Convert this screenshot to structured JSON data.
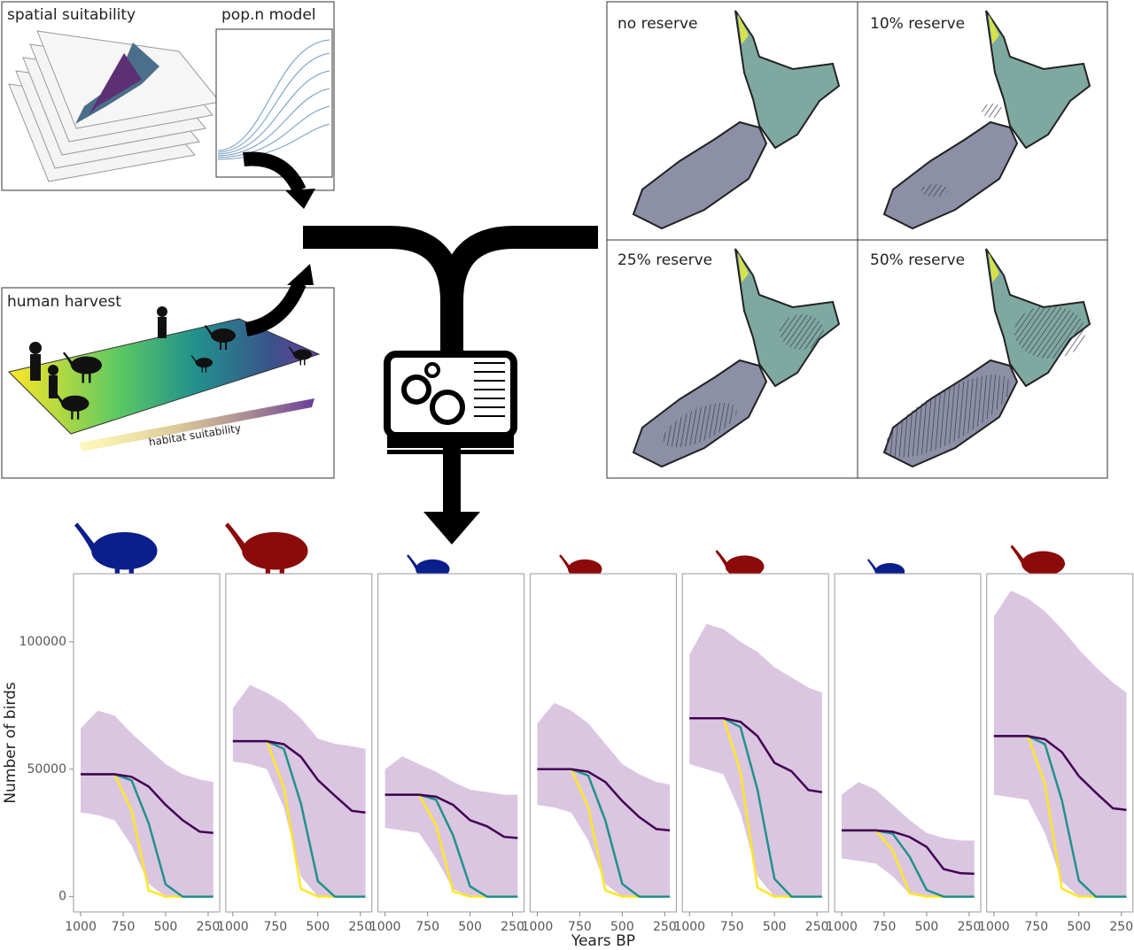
{
  "diagram": {
    "spatial": "spatial suitability",
    "popn": "pop.n model",
    "harvest": "human harvest",
    "gradient": "habitat suitability",
    "maps": [
      "no reserve",
      "10% reserve",
      "25% reserve",
      "50% reserve"
    ]
  },
  "chart_data": [
    {
      "type": "line",
      "ylabel": "Number of birds",
      "x": [
        1000,
        900,
        800,
        700,
        600,
        500,
        400,
        300,
        220
      ],
      "xlim": [
        1042,
        182
      ],
      "ylim": [
        -6000,
        126700
      ],
      "xticks": [
        1000,
        750,
        500,
        250
      ],
      "yticks": [
        0,
        50000,
        100000
      ],
      "band": {
        "color": "#cdb3d6",
        "upper": [
          66000,
          73000,
          71000,
          64000,
          58000,
          52000,
          48000,
          46000,
          45000
        ],
        "lower": [
          33000,
          32000,
          30000,
          20000,
          5000,
          0,
          0,
          0,
          0
        ]
      },
      "series": [
        {
          "color": "#fde725",
          "values": [
            48000,
            48000,
            48000,
            33600,
            2400,
            0,
            0,
            0,
            0
          ]
        },
        {
          "color": "#21918c",
          "values": [
            48000,
            48000,
            48000,
            45600,
            28800,
            4800,
            0,
            0,
            0
          ]
        },
        {
          "color": "#440154",
          "values": [
            48000,
            48000,
            48000,
            47000,
            43200,
            36000,
            30000,
            25500,
            25000
          ]
        }
      ]
    },
    {
      "type": "line",
      "x": [
        1000,
        900,
        800,
        700,
        600,
        500,
        400,
        300,
        220
      ],
      "xlim": [
        1042,
        182
      ],
      "ylim": [
        -6000,
        126700
      ],
      "xticks": [
        1000,
        750,
        500,
        250
      ],
      "band": {
        "color": "#cdb3d6",
        "upper": [
          74000,
          83000,
          80000,
          76000,
          70000,
          62000,
          60000,
          59000,
          58000
        ],
        "lower": [
          53000,
          52000,
          50000,
          35000,
          8000,
          0,
          0,
          0,
          0
        ]
      },
      "series": [
        {
          "color": "#fde725",
          "values": [
            61000,
            61000,
            61000,
            42700,
            3050,
            0,
            0,
            0,
            0
          ]
        },
        {
          "color": "#21918c",
          "values": [
            61000,
            61000,
            61000,
            57950,
            36600,
            6100,
            0,
            0,
            0
          ]
        },
        {
          "color": "#440154",
          "values": [
            61000,
            61000,
            61000,
            59800,
            54900,
            45750,
            39600,
            33660,
            33000
          ]
        }
      ]
    },
    {
      "type": "line",
      "x": [
        1000,
        900,
        800,
        700,
        600,
        500,
        400,
        300,
        220
      ],
      "xlim": [
        1042,
        182
      ],
      "ylim": [
        -6000,
        126700
      ],
      "xticks": [
        1000,
        750,
        500,
        250
      ],
      "band": {
        "color": "#cdb3d6",
        "upper": [
          50000,
          55000,
          52000,
          49000,
          45000,
          42000,
          41000,
          40000,
          40000
        ],
        "lower": [
          27000,
          26000,
          25000,
          15000,
          3000,
          0,
          0,
          0,
          0
        ]
      },
      "series": [
        {
          "color": "#fde725",
          "values": [
            40000,
            40000,
            40000,
            28000,
            2000,
            0,
            0,
            0,
            0
          ]
        },
        {
          "color": "#21918c",
          "values": [
            40000,
            40000,
            40000,
            38000,
            24000,
            4000,
            0,
            0,
            0
          ]
        },
        {
          "color": "#440154",
          "values": [
            40000,
            40000,
            40000,
            39200,
            36000,
            30000,
            27600,
            23460,
            23000
          ]
        }
      ]
    },
    {
      "type": "line",
      "xlabel": "Years BP",
      "x": [
        1000,
        900,
        800,
        700,
        600,
        500,
        400,
        300,
        220
      ],
      "xlim": [
        1042,
        182
      ],
      "ylim": [
        -6000,
        126700
      ],
      "xticks": [
        1000,
        750,
        500,
        250
      ],
      "band": {
        "color": "#cdb3d6",
        "upper": [
          68000,
          76000,
          73000,
          68000,
          60000,
          52000,
          48000,
          45000,
          44000
        ],
        "lower": [
          36000,
          35000,
          33000,
          22000,
          5000,
          0,
          0,
          0,
          0
        ]
      },
      "series": [
        {
          "color": "#fde725",
          "values": [
            50000,
            50000,
            50000,
            35000,
            2500,
            0,
            0,
            0,
            0
          ]
        },
        {
          "color": "#21918c",
          "values": [
            50000,
            50000,
            50000,
            47500,
            30000,
            5000,
            0,
            0,
            0
          ]
        },
        {
          "color": "#440154",
          "values": [
            50000,
            50000,
            50000,
            49000,
            45000,
            37500,
            31200,
            26520,
            26000
          ]
        }
      ]
    },
    {
      "type": "line",
      "x": [
        1000,
        900,
        800,
        700,
        600,
        500,
        400,
        300,
        220
      ],
      "xlim": [
        1042,
        182
      ],
      "ylim": [
        -6000,
        126700
      ],
      "xticks": [
        1000,
        750,
        500,
        250
      ],
      "band": {
        "color": "#cdb3d6",
        "upper": [
          95000,
          107000,
          105000,
          100000,
          96000,
          90000,
          86000,
          82000,
          80000
        ],
        "lower": [
          52000,
          50000,
          48000,
          33000,
          8000,
          0,
          0,
          0,
          0
        ]
      },
      "series": [
        {
          "color": "#fde725",
          "values": [
            70000,
            70000,
            70000,
            49000,
            3500,
            0,
            0,
            0,
            0
          ]
        },
        {
          "color": "#21918c",
          "values": [
            70000,
            70000,
            70000,
            66500,
            42000,
            7000,
            0,
            0,
            0
          ]
        },
        {
          "color": "#440154",
          "values": [
            70000,
            70000,
            70000,
            68600,
            63000,
            52500,
            49200,
            41820,
            41000
          ]
        }
      ]
    },
    {
      "type": "line",
      "x": [
        1000,
        900,
        800,
        700,
        600,
        500,
        400,
        300,
        220
      ],
      "xlim": [
        1042,
        182
      ],
      "ylim": [
        -6000,
        126700
      ],
      "xticks": [
        1000,
        750,
        500,
        250
      ],
      "band": {
        "color": "#cdb3d6",
        "upper": [
          40000,
          45000,
          42000,
          36000,
          30000,
          25000,
          23000,
          22000,
          22000
        ],
        "lower": [
          15000,
          14000,
          13000,
          8000,
          1000,
          0,
          0,
          0,
          0
        ]
      },
      "series": [
        {
          "color": "#fde725",
          "values": [
            26000,
            26000,
            26000,
            18200,
            1300,
            0,
            0,
            0,
            0
          ]
        },
        {
          "color": "#21918c",
          "values": [
            26000,
            26000,
            26000,
            24700,
            15600,
            2600,
            0,
            0,
            0
          ]
        },
        {
          "color": "#440154",
          "values": [
            26000,
            26000,
            26000,
            25480,
            23400,
            19500,
            10800,
            9180,
            9000
          ]
        }
      ]
    },
    {
      "type": "line",
      "x": [
        1000,
        900,
        800,
        700,
        600,
        500,
        400,
        300,
        220
      ],
      "xlim": [
        1042,
        182
      ],
      "ylim": [
        -6000,
        126700
      ],
      "xticks": [
        1000,
        750,
        500,
        250
      ],
      "band": {
        "color": "#cdb3d6",
        "upper": [
          110000,
          120000,
          117000,
          112000,
          105000,
          97000,
          90000,
          84000,
          80000
        ],
        "lower": [
          40000,
          39000,
          38000,
          25000,
          6000,
          0,
          0,
          0,
          0
        ]
      },
      "series": [
        {
          "color": "#fde725",
          "values": [
            63000,
            63000,
            63000,
            44100,
            3150,
            0,
            0,
            0,
            0
          ]
        },
        {
          "color": "#21918c",
          "values": [
            63000,
            63000,
            63000,
            59850,
            37800,
            6300,
            0,
            0,
            0
          ]
        },
        {
          "color": "#440154",
          "values": [
            63000,
            63000,
            63000,
            61740,
            56700,
            47250,
            40800,
            34680,
            34000
          ]
        }
      ]
    }
  ]
}
